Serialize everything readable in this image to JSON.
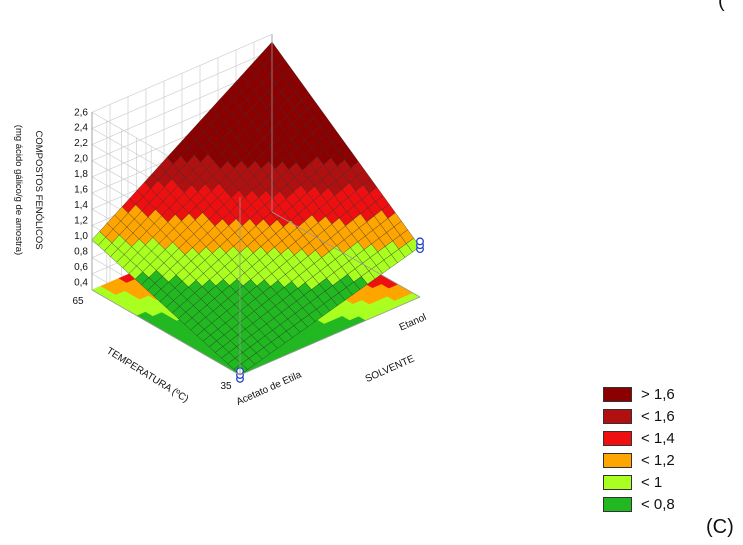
{
  "chart_data": {
    "type": "surface",
    "zlabel": [
      "COMPOSTOS FENÓLICOS",
      "(mg ácido gálico/g de amostra)"
    ],
    "xlabel": "SOLVENTE",
    "ylabel": "TEMPERATURA (ºC)",
    "x_categories": [
      "Acetato de Etila",
      "Etanol"
    ],
    "y_ticks": [
      35,
      65
    ],
    "z_ticks": [
      "0,4",
      "0,6",
      "0,8",
      "1,0",
      "1,2",
      "1,4",
      "1,6",
      "1,8",
      "2,0",
      "2,2",
      "2,4",
      "2,6"
    ],
    "zlim": [
      0.4,
      2.6
    ],
    "surface_corners": [
      {
        "solvente": "Acetato de Etila",
        "temperatura": 35,
        "z": 0.3
      },
      {
        "solvente": "Etanol",
        "temperatura": 35,
        "z": 0.95
      },
      {
        "solvente": "Acetato de Etila",
        "temperatura": 65,
        "z": 0.95
      },
      {
        "solvente": "Etanol",
        "temperatura": 65,
        "z": 2.5
      }
    ],
    "design_points": [
      {
        "solvente": "Acetato de Etila",
        "temperatura": 35,
        "z": [
          0.25,
          0.3,
          0.35
        ]
      },
      {
        "solvente": "Etanol",
        "temperatura": 35,
        "z": [
          0.92,
          0.97,
          1.02
        ]
      }
    ],
    "legend": [
      {
        "label": "> 1,6",
        "color": "#8b0000"
      },
      {
        "label": "< 1,6",
        "color": "#b01010"
      },
      {
        "label": "< 1,4",
        "color": "#ee1010"
      },
      {
        "label": "< 1,2",
        "color": "#ffa500"
      },
      {
        "label": "< 1",
        "color": "#a8ff20"
      },
      {
        "label": "< 0,8",
        "color": "#22b822"
      }
    ],
    "grid": true
  },
  "panel_label": "(C)",
  "corner_mark": "("
}
